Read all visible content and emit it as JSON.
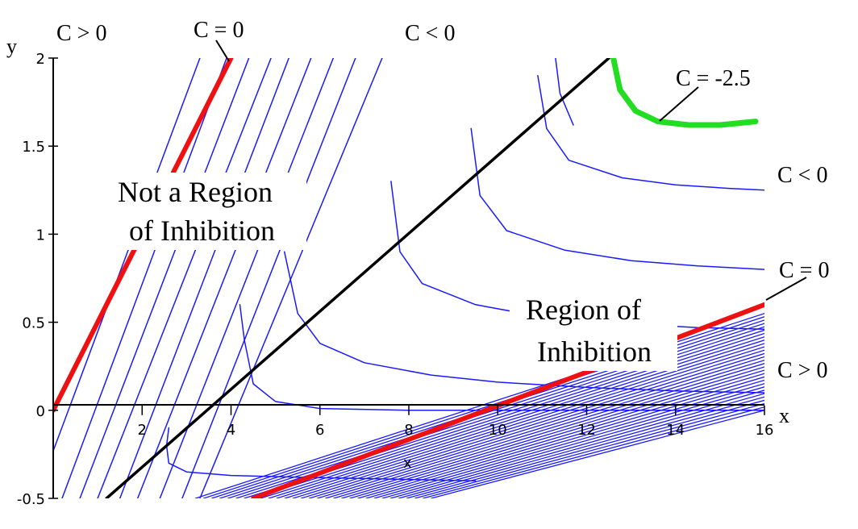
{
  "chart_data": {
    "type": "line",
    "title": "",
    "xlabel": "x",
    "ylabel": "y",
    "x_axis_title": "x",
    "xlim": [
      0,
      16
    ],
    "ylim": [
      -0.5,
      2
    ],
    "xticks": [
      2,
      4,
      6,
      8,
      10,
      12,
      14,
      16
    ],
    "yticks": [
      -0.5,
      0,
      0.5,
      1,
      1.5,
      2
    ],
    "grid": false,
    "colors": {
      "contours": "#1a1aff",
      "zero_level": "#ee1111",
      "highlight_level": "#22dd22",
      "boundary": "#000000"
    },
    "series": [
      {
        "kind": "contour_lines_upper_left",
        "label": "C > 0",
        "lines": [
          {
            "x": [
              -0.4,
              3.3
            ],
            "y": [
              -0.5,
              2.0
            ]
          },
          {
            "x": [
              0.2,
              3.9
            ],
            "y": [
              -0.5,
              2.0
            ]
          },
          {
            "x": [
              0.6,
              4.4
            ],
            "y": [
              -0.5,
              2.0
            ]
          },
          {
            "x": [
              1.0,
              4.9
            ],
            "y": [
              -0.5,
              2.0
            ]
          },
          {
            "x": [
              1.5,
              5.3
            ],
            "y": [
              -0.5,
              2.0
            ]
          },
          {
            "x": [
              1.9,
              5.8
            ],
            "y": [
              -0.5,
              2.0
            ]
          },
          {
            "x": [
              2.4,
              6.3
            ],
            "y": [
              -0.5,
              2.0
            ]
          },
          {
            "x": [
              2.9,
              6.8
            ],
            "y": [
              -0.5,
              2.0
            ]
          },
          {
            "x": [
              3.3,
              7.4
            ],
            "y": [
              -0.5,
              2.0
            ]
          }
        ]
      },
      {
        "kind": "zero_level_upper",
        "label": "C = 0",
        "x": [
          0.0,
          4.0
        ],
        "y": [
          0.0,
          2.0
        ]
      },
      {
        "kind": "contour_lines_hyperbolic",
        "label": "C < 0",
        "lines": [
          {
            "x": [
              2.6,
              2.55,
              2.6,
              3.0,
              4.0,
              5.5,
              7.5,
              9.5
            ],
            "y": [
              -0.1,
              -0.2,
              -0.3,
              -0.35,
              -0.37,
              -0.38,
              -0.39,
              -0.4
            ]
          },
          {
            "x": [
              4.2,
              4.3,
              4.5,
              5.0,
              6.0,
              8.0,
              10.0,
              12.0,
              14.0,
              16.0
            ],
            "y": [
              0.6,
              0.4,
              0.15,
              0.05,
              0.01,
              0.0,
              0.0,
              0.0,
              0.0,
              0.0
            ]
          },
          {
            "x": [
              5.2,
              5.5,
              6.0,
              7.0,
              8.5,
              10.0,
              12.0,
              14.0,
              16.0
            ],
            "y": [
              0.9,
              0.55,
              0.38,
              0.27,
              0.2,
              0.16,
              0.13,
              0.11,
              0.1
            ]
          },
          {
            "x": [
              7.6,
              7.8,
              8.3,
              9.5,
              11.0,
              13.0,
              14.5,
              16.0
            ],
            "y": [
              1.3,
              0.9,
              0.72,
              0.6,
              0.53,
              0.49,
              0.47,
              0.46
            ]
          },
          {
            "x": [
              9.4,
              9.6,
              10.2,
              11.5,
              13.0,
              14.5,
              16.0
            ],
            "y": [
              1.6,
              1.22,
              1.02,
              0.91,
              0.85,
              0.82,
              0.8
            ]
          },
          {
            "x": [
              10.9,
              11.1,
              11.6,
              12.8,
              14.0,
              15.2,
              16.0
            ],
            "y": [
              1.9,
              1.6,
              1.42,
              1.32,
              1.28,
              1.26,
              1.25
            ]
          },
          {
            "x": [
              11.3,
              11.4,
              11.7
            ],
            "y": [
              2.0,
              1.8,
              1.62
            ]
          }
        ]
      },
      {
        "kind": "highlight_level",
        "label": "C = -2.5",
        "x": [
          12.6,
          12.75,
          13.1,
          13.6,
          14.3,
          15.0,
          15.8
        ],
        "y": [
          2.0,
          1.82,
          1.7,
          1.64,
          1.62,
          1.62,
          1.64
        ]
      },
      {
        "kind": "zero_level_lower",
        "label": "C = 0",
        "x": [
          4.5,
          16.0
        ],
        "y": [
          -0.5,
          0.6
        ]
      },
      {
        "kind": "contour_lines_lower_right",
        "label": "C > 0",
        "count": 30,
        "x_start": [
          3.2,
          8.5
        ],
        "x_end": [
          16.0,
          16.0
        ],
        "y_start": [
          -0.5,
          -0.5
        ],
        "y_end_range": [
          0.55,
          0.0
        ]
      },
      {
        "kind": "boundary_line",
        "label": "",
        "x": [
          1.2,
          12.5
        ],
        "y": [
          -0.5,
          2.0
        ]
      }
    ],
    "annotations": {
      "c_gt_zero_top": "C > 0",
      "c_eq_zero_top": "C = 0",
      "c_lt_zero_top": "C < 0",
      "c_eq_minus_2_5": "C = -2.5",
      "c_lt_zero_right": "C < 0",
      "c_eq_zero_right": "C = 0",
      "c_gt_zero_right": "C > 0"
    },
    "region_labels": {
      "not_inhibition_line1": "Not a Region",
      "not_inhibition_line2": "of Inhibition",
      "inhibition_line1": "Region of",
      "inhibition_line2": "Inhibition"
    }
  }
}
